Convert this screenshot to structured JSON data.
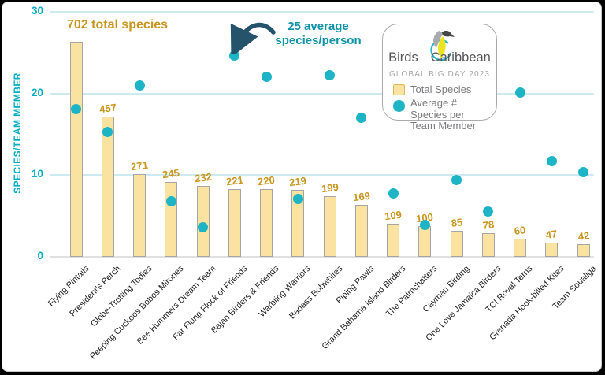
{
  "titles": {
    "headline": "702 total species",
    "annotation_line1": "25 average",
    "annotation_line2": "species/person",
    "y_axis_title": "SPECIES/TEAM MEMBER"
  },
  "legend": {
    "brand_left": "Birds",
    "brand_right": "Caribbean",
    "subtitle": "GLOBAL BIG DAY 2023",
    "items": [
      {
        "swatch": "bar-square",
        "label": "Total Species"
      },
      {
        "swatch": "teal-dot",
        "label": "Average # Species per Team Member"
      }
    ]
  },
  "chart_data": {
    "type": "bar",
    "title": "702 total species",
    "xlabel": "",
    "ylabel": "SPECIES/TEAM MEMBER",
    "ylim": [
      0,
      30
    ],
    "y_ticks": [
      0,
      10,
      20,
      30
    ],
    "grid": "horizontal",
    "legend_position": "top-right",
    "bar_hidden_axis_max": 800,
    "categories": [
      "Flying Pintails",
      "President's Perch",
      "Globe-Trotting Todies",
      "Peeping Cuckoos Bobos Mirones",
      "Bee Hummers Dream Team",
      "Far Flung Flock of Friends",
      "Bajan Birders & Friends",
      "Warbling Warriors",
      "Badass Bobwhites",
      "Piping Pawis",
      "Grand Bahama Island Birders",
      "The Palmchatters",
      "Cayman Birding",
      "One Love Jamaica Birders",
      "TCI Royal Terns",
      "Grenada Hook-billed Kites",
      "Team Soualiga"
    ],
    "series": [
      {
        "name": "Total Species",
        "type": "bar",
        "values": [
          702,
          457,
          271,
          245,
          232,
          221,
          220,
          219,
          199,
          169,
          109,
          100,
          85,
          78,
          60,
          47,
          42
        ]
      },
      {
        "name": "Average # Species per Team Member",
        "type": "scatter",
        "values": [
          18.1,
          15.3,
          21,
          6.8,
          3.6,
          24.6,
          22,
          7.1,
          22.2,
          17,
          7.8,
          3.9,
          9.4,
          5.5,
          20.1,
          11.7,
          10.4
        ]
      }
    ],
    "annotations": [
      "702 total species",
      "25 average species/person"
    ]
  },
  "colors": {
    "bar_fill": "#FAE3A1",
    "bar_border": "#A5A5A5",
    "dot_teal": "#1DB4C6",
    "grid_cyan": "#CDEAF1",
    "zero_line": "#E0E0E0",
    "axis_teal": "#00AEC2",
    "gold": "#C8961E",
    "annotation_teal": "#0F93A8",
    "arrow_navy": "#24536B",
    "logo_arc_teal": "#2AB6C9",
    "logo_yellow": "#ECE41E",
    "logo_gray": "#A8AAAD"
  }
}
